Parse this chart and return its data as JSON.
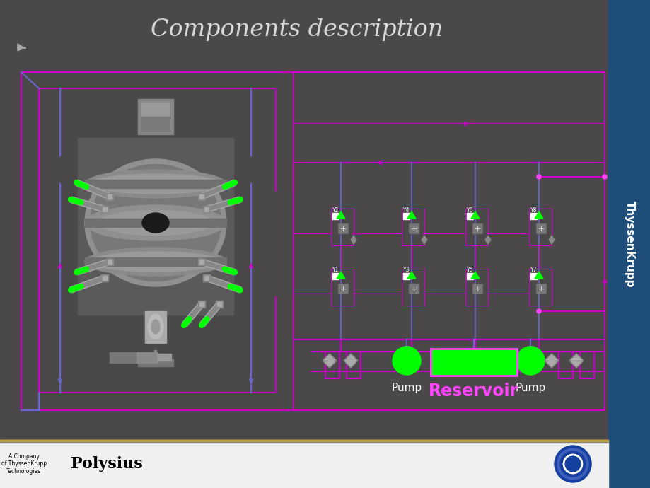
{
  "title": "Components description",
  "title_color": "#d8d8d8",
  "title_fontsize": 24,
  "bg_color": "#4a4848",
  "magenta": "#cc00cc",
  "magenta2": "#ff44ff",
  "purple": "#6666cc",
  "green": "#00ff00",
  "sidebar_color": "#1e4d7a",
  "footer_bg": "#f0f0f0",
  "pump_text": "Pump",
  "reservoir_text": "Reservoir",
  "polysius_text": "Polysius",
  "company_text": "A Company\nof ThyssenKrupp\nTechnologies",
  "thyssenkrupp_text": "ThyssenKrupp",
  "valve_top_labels": [
    "Y2",
    "Y4",
    "Y6",
    "Y8"
  ],
  "valve_bot_labels": [
    "Y1",
    "Y3",
    "Y5",
    "Y7"
  ]
}
